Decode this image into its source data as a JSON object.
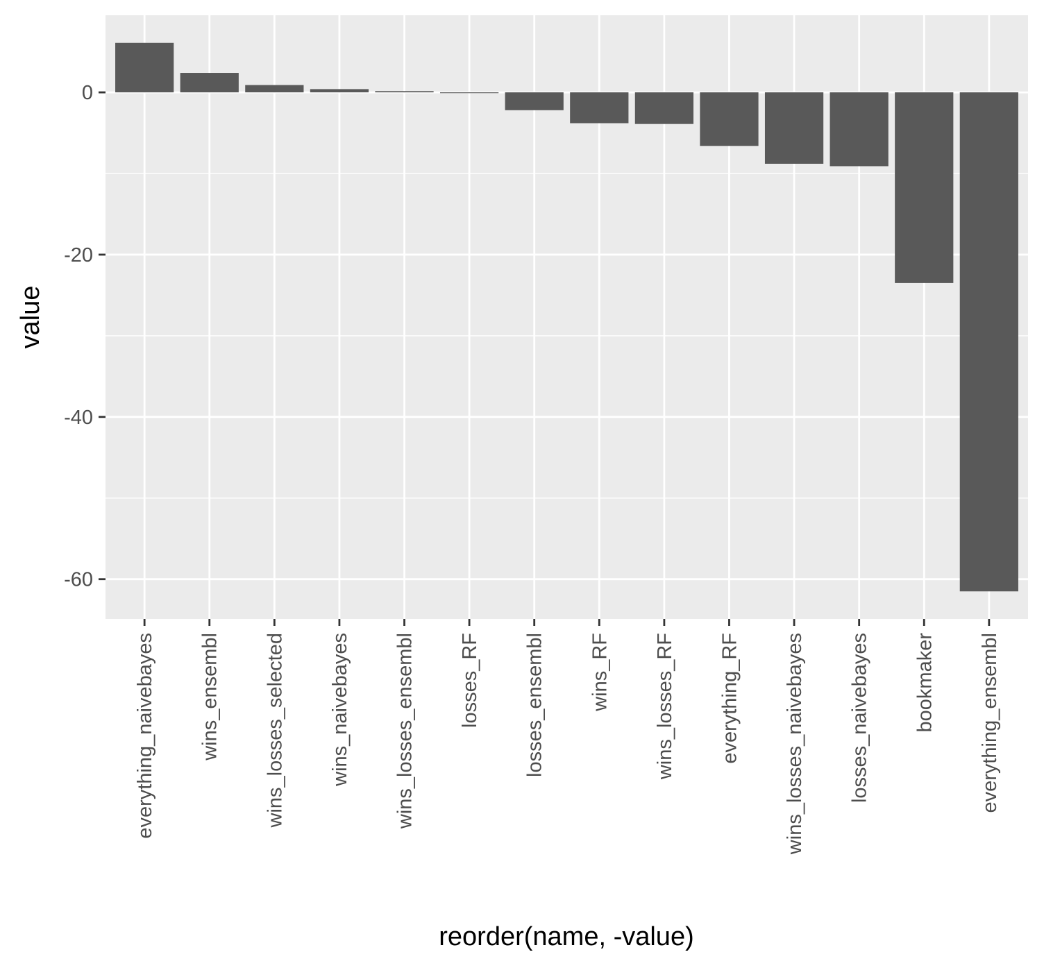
{
  "chart_data": {
    "type": "bar",
    "xlabel": "reorder(name, -value)",
    "ylabel": "value",
    "categories": [
      "everything_naivebayes",
      "wins_ensembl",
      "wins_losses_selected",
      "wins_naivebayes",
      "wins_losses_ensembl",
      "losses_RF",
      "losses_ensembl",
      "wins_RF",
      "wins_losses_RF",
      "everything_RF",
      "wins_losses_naivebayes",
      "losses_naivebayes",
      "bookmaker",
      "everything_ensembl"
    ],
    "values": [
      6.1,
      2.4,
      0.9,
      0.4,
      0.15,
      -0.1,
      -2.2,
      -3.8,
      -3.9,
      -6.6,
      -8.8,
      -9.1,
      -23.5,
      -61.5
    ],
    "ylim": [
      -64.9,
      9.5
    ],
    "yticks": [
      0,
      -20,
      -40,
      -60
    ],
    "ytick_labels": [
      "0",
      "-20",
      "-40",
      "-60"
    ],
    "grid": true,
    "colors": {
      "panel_background": "#ebebeb",
      "grid": "#ffffff",
      "bar_fill": "#595959",
      "tick": "#333333"
    }
  }
}
